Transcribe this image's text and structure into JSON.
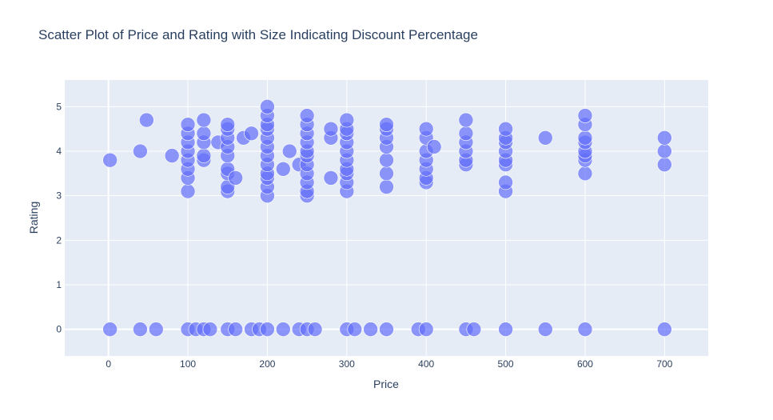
{
  "chart_data": {
    "type": "scatter",
    "title": "Scatter Plot of Price and Rating with Size Indicating Discount Percentage",
    "xlabel": "Price",
    "ylabel": "Rating",
    "xlim": [
      -55,
      755
    ],
    "ylim": [
      -0.6,
      5.6
    ],
    "xticks": [
      0,
      100,
      200,
      300,
      400,
      500,
      600,
      700
    ],
    "yticks": [
      0,
      1,
      2,
      3,
      4,
      5
    ],
    "grid": true,
    "legend": "none",
    "marker_color": "#636efa",
    "plot_bg": "#e5ecf6",
    "points": [
      {
        "x": 2,
        "y": 3.8
      },
      {
        "x": 40,
        "y": 4.0
      },
      {
        "x": 48,
        "y": 4.7
      },
      {
        "x": 80,
        "y": 3.9
      },
      {
        "x": 100,
        "y": 3.1
      },
      {
        "x": 100,
        "y": 3.4
      },
      {
        "x": 100,
        "y": 3.6
      },
      {
        "x": 100,
        "y": 3.8
      },
      {
        "x": 100,
        "y": 4.0
      },
      {
        "x": 100,
        "y": 4.2
      },
      {
        "x": 100,
        "y": 4.4
      },
      {
        "x": 100,
        "y": 4.6
      },
      {
        "x": 120,
        "y": 3.8
      },
      {
        "x": 120,
        "y": 3.9
      },
      {
        "x": 120,
        "y": 4.2
      },
      {
        "x": 120,
        "y": 4.4
      },
      {
        "x": 120,
        "y": 4.7
      },
      {
        "x": 138,
        "y": 4.2
      },
      {
        "x": 150,
        "y": 3.1
      },
      {
        "x": 150,
        "y": 3.2
      },
      {
        "x": 150,
        "y": 3.5
      },
      {
        "x": 150,
        "y": 3.6
      },
      {
        "x": 150,
        "y": 3.9
      },
      {
        "x": 150,
        "y": 4.1
      },
      {
        "x": 150,
        "y": 4.3
      },
      {
        "x": 150,
        "y": 4.5
      },
      {
        "x": 150,
        "y": 4.6
      },
      {
        "x": 160,
        "y": 3.4
      },
      {
        "x": 170,
        "y": 4.3
      },
      {
        "x": 180,
        "y": 4.4
      },
      {
        "x": 200,
        "y": 3.0
      },
      {
        "x": 200,
        "y": 3.2
      },
      {
        "x": 200,
        "y": 3.4
      },
      {
        "x": 200,
        "y": 3.5
      },
      {
        "x": 200,
        "y": 3.7
      },
      {
        "x": 200,
        "y": 3.9
      },
      {
        "x": 200,
        "y": 4.1
      },
      {
        "x": 200,
        "y": 4.3
      },
      {
        "x": 200,
        "y": 4.5
      },
      {
        "x": 200,
        "y": 4.6
      },
      {
        "x": 200,
        "y": 4.8
      },
      {
        "x": 200,
        "y": 5.0
      },
      {
        "x": 220,
        "y": 3.6
      },
      {
        "x": 228,
        "y": 4.0
      },
      {
        "x": 240,
        "y": 3.7
      },
      {
        "x": 250,
        "y": 3.0
      },
      {
        "x": 250,
        "y": 3.1
      },
      {
        "x": 250,
        "y": 3.3
      },
      {
        "x": 250,
        "y": 3.5
      },
      {
        "x": 250,
        "y": 3.7
      },
      {
        "x": 250,
        "y": 3.9
      },
      {
        "x": 250,
        "y": 4.0
      },
      {
        "x": 250,
        "y": 4.2
      },
      {
        "x": 250,
        "y": 4.4
      },
      {
        "x": 250,
        "y": 4.6
      },
      {
        "x": 250,
        "y": 4.8
      },
      {
        "x": 280,
        "y": 3.4
      },
      {
        "x": 280,
        "y": 4.3
      },
      {
        "x": 280,
        "y": 4.5
      },
      {
        "x": 300,
        "y": 3.1
      },
      {
        "x": 300,
        "y": 3.3
      },
      {
        "x": 300,
        "y": 3.5
      },
      {
        "x": 300,
        "y": 3.6
      },
      {
        "x": 300,
        "y": 3.8
      },
      {
        "x": 300,
        "y": 4.0
      },
      {
        "x": 300,
        "y": 4.2
      },
      {
        "x": 300,
        "y": 4.4
      },
      {
        "x": 300,
        "y": 4.5
      },
      {
        "x": 300,
        "y": 4.7
      },
      {
        "x": 350,
        "y": 3.2
      },
      {
        "x": 350,
        "y": 3.5
      },
      {
        "x": 350,
        "y": 3.8
      },
      {
        "x": 350,
        "y": 4.1
      },
      {
        "x": 350,
        "y": 4.3
      },
      {
        "x": 350,
        "y": 4.5
      },
      {
        "x": 350,
        "y": 4.6
      },
      {
        "x": 400,
        "y": 3.3
      },
      {
        "x": 400,
        "y": 3.4
      },
      {
        "x": 400,
        "y": 3.6
      },
      {
        "x": 400,
        "y": 3.8
      },
      {
        "x": 400,
        "y": 4.0
      },
      {
        "x": 400,
        "y": 4.3
      },
      {
        "x": 400,
        "y": 4.5
      },
      {
        "x": 410,
        "y": 4.1
      },
      {
        "x": 450,
        "y": 3.7
      },
      {
        "x": 450,
        "y": 3.8
      },
      {
        "x": 450,
        "y": 4.0
      },
      {
        "x": 450,
        "y": 4.2
      },
      {
        "x": 450,
        "y": 4.4
      },
      {
        "x": 450,
        "y": 4.7
      },
      {
        "x": 500,
        "y": 3.1
      },
      {
        "x": 500,
        "y": 3.3
      },
      {
        "x": 500,
        "y": 3.7
      },
      {
        "x": 500,
        "y": 3.8
      },
      {
        "x": 500,
        "y": 4.0
      },
      {
        "x": 500,
        "y": 4.2
      },
      {
        "x": 500,
        "y": 4.3
      },
      {
        "x": 500,
        "y": 4.5
      },
      {
        "x": 550,
        "y": 4.3
      },
      {
        "x": 600,
        "y": 3.5
      },
      {
        "x": 600,
        "y": 3.8
      },
      {
        "x": 600,
        "y": 3.9
      },
      {
        "x": 600,
        "y": 4.0
      },
      {
        "x": 600,
        "y": 4.2
      },
      {
        "x": 600,
        "y": 4.3
      },
      {
        "x": 600,
        "y": 4.6
      },
      {
        "x": 600,
        "y": 4.8
      },
      {
        "x": 700,
        "y": 3.7
      },
      {
        "x": 700,
        "y": 4.0
      },
      {
        "x": 700,
        "y": 4.3
      },
      {
        "x": 2,
        "y": 0
      },
      {
        "x": 40,
        "y": 0
      },
      {
        "x": 60,
        "y": 0
      },
      {
        "x": 100,
        "y": 0
      },
      {
        "x": 110,
        "y": 0
      },
      {
        "x": 120,
        "y": 0
      },
      {
        "x": 128,
        "y": 0
      },
      {
        "x": 150,
        "y": 0
      },
      {
        "x": 160,
        "y": 0
      },
      {
        "x": 180,
        "y": 0
      },
      {
        "x": 190,
        "y": 0
      },
      {
        "x": 200,
        "y": 0
      },
      {
        "x": 220,
        "y": 0
      },
      {
        "x": 240,
        "y": 0
      },
      {
        "x": 250,
        "y": 0
      },
      {
        "x": 260,
        "y": 0
      },
      {
        "x": 300,
        "y": 0
      },
      {
        "x": 310,
        "y": 0
      },
      {
        "x": 330,
        "y": 0
      },
      {
        "x": 350,
        "y": 0
      },
      {
        "x": 390,
        "y": 0
      },
      {
        "x": 400,
        "y": 0
      },
      {
        "x": 450,
        "y": 0
      },
      {
        "x": 460,
        "y": 0
      },
      {
        "x": 500,
        "y": 0
      },
      {
        "x": 550,
        "y": 0
      },
      {
        "x": 600,
        "y": 0
      },
      {
        "x": 700,
        "y": 0
      }
    ]
  }
}
